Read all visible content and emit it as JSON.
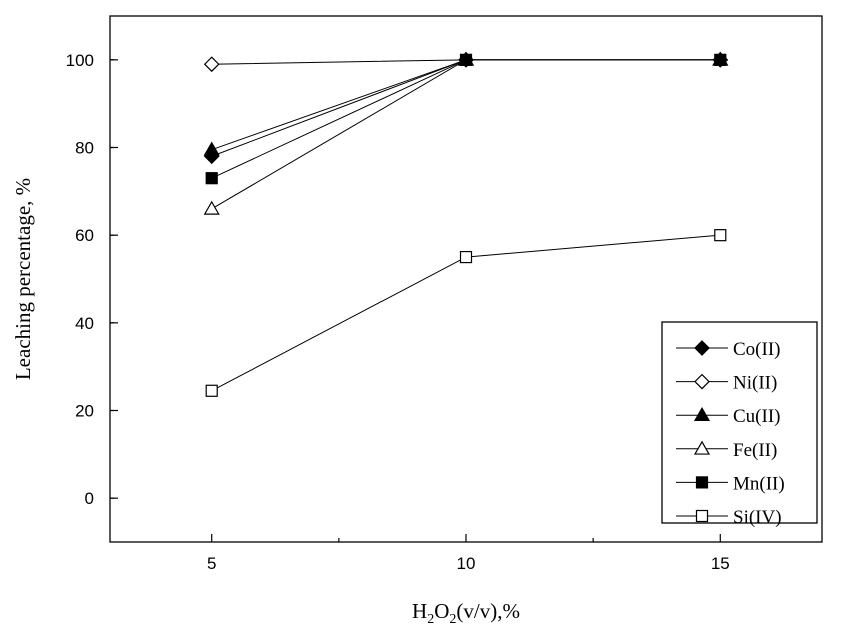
{
  "chart_data": {
    "type": "line",
    "xlabel": "H2O2(v/v),%",
    "xlabel_parts": {
      "base1": "H",
      "sub1": "2",
      "base2": "O",
      "sub2": "2",
      "rest": "(v/v),%"
    },
    "ylabel": "Leaching percentage, %",
    "x": [
      5,
      10,
      15
    ],
    "xlim": [
      3,
      17
    ],
    "ylim": [
      -10,
      110
    ],
    "x_ticks": [
      5,
      10,
      15
    ],
    "y_ticks": [
      0,
      20,
      40,
      60,
      80,
      100
    ],
    "grid": false,
    "legend_position": "bottom-right",
    "series": [
      {
        "name": "Co(II)",
        "marker": "diamond-filled",
        "values": [
          78,
          100,
          100
        ]
      },
      {
        "name": "Ni(II)",
        "marker": "diamond-open",
        "values": [
          99,
          100,
          100
        ]
      },
      {
        "name": "Cu(II)",
        "marker": "triangle-filled",
        "values": [
          79.5,
          100,
          100
        ]
      },
      {
        "name": "Fe(II)",
        "marker": "triangle-open",
        "values": [
          66,
          100,
          100
        ]
      },
      {
        "name": "Mn(II)",
        "marker": "square-filled",
        "values": [
          73,
          100,
          100
        ]
      },
      {
        "name": "Si(IV)",
        "marker": "square-open",
        "values": [
          24.5,
          55,
          60
        ]
      }
    ]
  }
}
